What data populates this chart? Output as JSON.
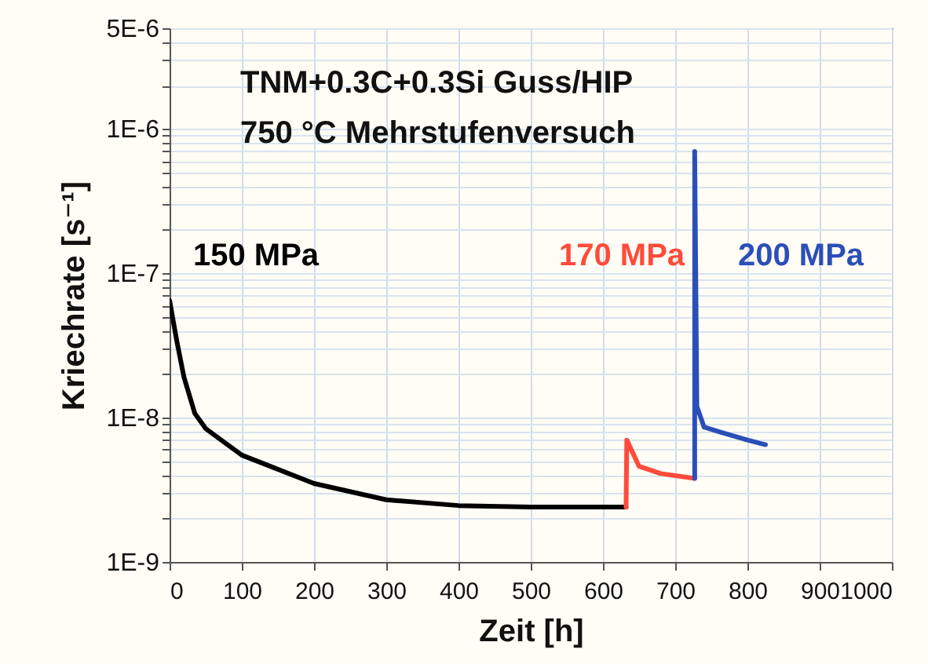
{
  "chart_data": {
    "type": "line",
    "xlabel": "Zeit [h]",
    "ylabel": "Kriechrate [s⁻¹]",
    "log": "y",
    "annotations": [
      "TNM+0.3C+0.3Si Guss/HIP",
      "750 °C Mehrstufenversuch"
    ],
    "xlim": [
      0,
      1000
    ],
    "xticks": [
      0,
      100,
      200,
      300,
      400,
      500,
      600,
      700,
      800,
      900,
      1000
    ],
    "ylim": [
      1e-09,
      5e-06
    ],
    "yticks": [
      {
        "value": 1e-09,
        "label": "1E-9"
      },
      {
        "value": 2e-09,
        "label": null
      },
      {
        "value": 3e-09,
        "label": null
      },
      {
        "value": 4e-09,
        "label": null
      },
      {
        "value": 5e-09,
        "label": null
      },
      {
        "value": 6e-09,
        "label": null
      },
      {
        "value": 7e-09,
        "label": null
      },
      {
        "value": 8e-09,
        "label": null
      },
      {
        "value": 9e-09,
        "label": null
      },
      {
        "value": 1e-08,
        "label": "1E-8"
      },
      {
        "value": 2e-08,
        "label": null
      },
      {
        "value": 3e-08,
        "label": null
      },
      {
        "value": 4e-08,
        "label": null
      },
      {
        "value": 5e-08,
        "label": null
      },
      {
        "value": 6e-08,
        "label": null
      },
      {
        "value": 7e-08,
        "label": null
      },
      {
        "value": 8e-08,
        "label": null
      },
      {
        "value": 9e-08,
        "label": null
      },
      {
        "value": 1e-07,
        "label": "1E-7"
      },
      {
        "value": 2e-07,
        "label": null
      },
      {
        "value": 3e-07,
        "label": null
      },
      {
        "value": 4e-07,
        "label": null
      },
      {
        "value": 5e-07,
        "label": null
      },
      {
        "value": 6e-07,
        "label": null
      },
      {
        "value": 7e-07,
        "label": null
      },
      {
        "value": 8e-07,
        "label": null
      },
      {
        "value": 9e-07,
        "label": null
      },
      {
        "value": 1e-06,
        "label": "1E-6"
      },
      {
        "value": 2e-06,
        "label": null
      },
      {
        "value": 3e-06,
        "label": null
      },
      {
        "value": 4e-06,
        "label": null
      },
      {
        "value": 5e-06,
        "label": "5E-6"
      }
    ],
    "grid": true,
    "line_style": "solid",
    "series": [
      {
        "name": "150 MPa",
        "color": "#000000",
        "x": [
          0,
          10,
          20,
          35,
          50,
          100,
          200,
          300,
          400,
          500,
          632
        ],
        "values": [
          6.5e-08,
          3.4e-08,
          1.9e-08,
          1.07e-08,
          8.4e-09,
          5.5e-09,
          3.5e-09,
          2.7e-09,
          2.46e-09,
          2.4e-09,
          2.4e-09
        ]
      },
      {
        "name": "170 MPa",
        "color": "#ff4b3a",
        "x": [
          632,
          633,
          650,
          680,
          727
        ],
        "values": [
          2.4e-09,
          7e-09,
          4.6e-09,
          4.1e-09,
          3.8e-09
        ]
      },
      {
        "name": "200 MPa",
        "color": "#2b4fb8",
        "x": [
          727,
          727,
          730,
          740,
          760,
          800,
          825
        ],
        "values": [
          3.8e-09,
          7e-07,
          1.2e-08,
          8.6e-09,
          8e-09,
          7e-09,
          6.5e-09
        ]
      }
    ]
  }
}
